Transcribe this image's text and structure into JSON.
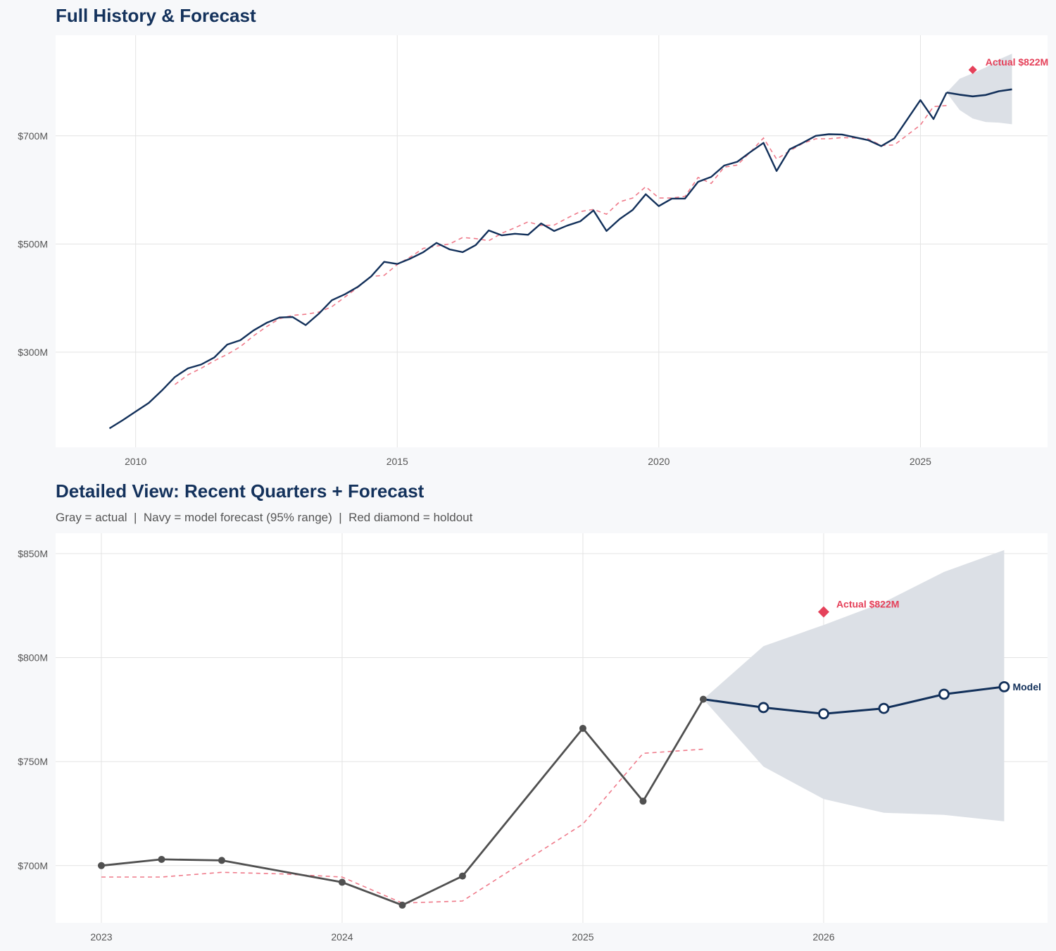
{
  "colors": {
    "navy": "#12305a",
    "red": "#e5415a",
    "actual_gray": "#505050",
    "fitted": "#ef7a8a",
    "band": "#dce0e6",
    "grid": "#e3e3e3"
  },
  "chart_data": [
    {
      "type": "line",
      "title": "Full History & Forecast",
      "xlim": [
        2008.47,
        2027.43
      ],
      "ylim": [
        124,
        886
      ],
      "x_ticks": [
        2010,
        2015,
        2020,
        2025
      ],
      "x_tick_labels": [
        "2010",
        "2015",
        "2020",
        "2025"
      ],
      "y_ticks": [
        300,
        500,
        700
      ],
      "y_tick_labels": [
        "$300M",
        "$500M",
        "$700M"
      ],
      "grid": true,
      "series": {
        "actual": [
          [
            2009.5,
            159
          ],
          [
            2009.75,
            174
          ],
          [
            2010,
            190
          ],
          [
            2010.25,
            206
          ],
          [
            2010.5,
            229
          ],
          [
            2010.75,
            254
          ],
          [
            2011,
            270
          ],
          [
            2011.25,
            277
          ],
          [
            2011.5,
            290
          ],
          [
            2011.75,
            314
          ],
          [
            2012,
            322
          ],
          [
            2012.25,
            340
          ],
          [
            2012.5,
            354
          ],
          [
            2012.75,
            364
          ],
          [
            2013,
            365
          ],
          [
            2013.25,
            350
          ],
          [
            2013.5,
            371
          ],
          [
            2013.75,
            396
          ],
          [
            2014,
            407
          ],
          [
            2014.25,
            421
          ],
          [
            2014.5,
            440
          ],
          [
            2014.75,
            467
          ],
          [
            2015,
            463
          ],
          [
            2015.25,
            473
          ],
          [
            2015.5,
            485
          ],
          [
            2015.75,
            502
          ],
          [
            2016,
            490
          ],
          [
            2016.25,
            485
          ],
          [
            2016.5,
            498
          ],
          [
            2016.75,
            525
          ],
          [
            2017,
            516
          ],
          [
            2017.25,
            519
          ],
          [
            2017.5,
            517
          ],
          [
            2017.75,
            538
          ],
          [
            2018,
            524
          ],
          [
            2018.25,
            534
          ],
          [
            2018.5,
            542
          ],
          [
            2018.75,
            562
          ],
          [
            2019,
            524
          ],
          [
            2019.25,
            546
          ],
          [
            2019.5,
            563
          ],
          [
            2019.75,
            592
          ],
          [
            2020,
            570
          ],
          [
            2020.25,
            584
          ],
          [
            2020.5,
            584
          ],
          [
            2020.75,
            615
          ],
          [
            2021,
            624
          ],
          [
            2021.25,
            645
          ],
          [
            2021.5,
            652
          ],
          [
            2021.75,
            670
          ],
          [
            2022,
            687
          ],
          [
            2022.25,
            635
          ],
          [
            2022.5,
            675
          ],
          [
            2022.75,
            687
          ],
          [
            2023,
            700
          ],
          [
            2023.25,
            703
          ],
          [
            2023.5,
            702.5
          ],
          [
            2024,
            692
          ],
          [
            2024.25,
            681
          ],
          [
            2024.5,
            695
          ],
          [
            2025,
            766
          ],
          [
            2025.25,
            731
          ],
          [
            2025.5,
            780
          ]
        ],
        "fitted": [
          [
            2010.75,
            240
          ],
          [
            2011,
            258
          ],
          [
            2011.25,
            270
          ],
          [
            2011.5,
            284
          ],
          [
            2011.75,
            296
          ],
          [
            2012,
            310
          ],
          [
            2012.25,
            330
          ],
          [
            2012.5,
            347
          ],
          [
            2012.75,
            362
          ],
          [
            2013,
            368
          ],
          [
            2013.25,
            370
          ],
          [
            2013.5,
            374
          ],
          [
            2013.75,
            384
          ],
          [
            2014,
            402
          ],
          [
            2014.25,
            420
          ],
          [
            2014.5,
            440
          ],
          [
            2014.75,
            442
          ],
          [
            2015,
            462
          ],
          [
            2015.25,
            476
          ],
          [
            2015.5,
            492
          ],
          [
            2015.75,
            496
          ],
          [
            2016,
            500
          ],
          [
            2016.25,
            512
          ],
          [
            2016.5,
            510
          ],
          [
            2016.75,
            506
          ],
          [
            2017,
            520
          ],
          [
            2017.25,
            530
          ],
          [
            2017.5,
            541
          ],
          [
            2017.75,
            534
          ],
          [
            2018,
            535
          ],
          [
            2018.25,
            548
          ],
          [
            2018.5,
            560
          ],
          [
            2018.75,
            564
          ],
          [
            2019,
            555
          ],
          [
            2019.25,
            578
          ],
          [
            2019.5,
            585
          ],
          [
            2019.75,
            606
          ],
          [
            2020,
            585
          ],
          [
            2020.25,
            585
          ],
          [
            2020.5,
            588
          ],
          [
            2020.75,
            623
          ],
          [
            2021,
            612
          ],
          [
            2021.25,
            642
          ],
          [
            2021.5,
            646
          ],
          [
            2021.75,
            670
          ],
          [
            2022,
            696
          ],
          [
            2022.25,
            657
          ],
          [
            2022.5,
            672
          ],
          [
            2022.75,
            686
          ],
          [
            2023,
            694.5
          ],
          [
            2023.25,
            694.5
          ],
          [
            2023.5,
            696.8
          ],
          [
            2023.75,
            696
          ],
          [
            2024,
            694.5
          ],
          [
            2024.25,
            682
          ],
          [
            2024.5,
            683
          ],
          [
            2025,
            720
          ],
          [
            2025.25,
            754
          ],
          [
            2025.5,
            756
          ]
        ],
        "forecast": [
          [
            2025.5,
            780
          ],
          [
            2025.75,
            776
          ],
          [
            2026,
            773
          ],
          [
            2026.25,
            775.6
          ],
          [
            2026.5,
            782.4
          ],
          [
            2026.75,
            786
          ]
        ],
        "band_upper": [
          [
            2025.5,
            780
          ],
          [
            2025.75,
            805.5
          ],
          [
            2026,
            815.7
          ],
          [
            2026.25,
            826.6
          ],
          [
            2026.5,
            841.2
          ],
          [
            2026.75,
            851.7
          ]
        ],
        "band_lower": [
          [
            2025.5,
            780
          ],
          [
            2025.75,
            747.6
          ],
          [
            2026,
            732
          ],
          [
            2026.25,
            725.4
          ],
          [
            2026.5,
            724.4
          ],
          [
            2026.75,
            721.3
          ]
        ],
        "holdout": [
          2026,
          822
        ]
      },
      "annotations": {
        "holdout_label": "Actual $822M"
      }
    },
    {
      "type": "line",
      "title": "Detailed View: Recent Quarters + Forecast",
      "subtitle": "Gray = actual  |  Navy = model forecast (95% range)  |  Red diamond = holdout",
      "xlim": [
        2022.81,
        2026.93
      ],
      "ylim": [
        672.5,
        859.8
      ],
      "x_ticks": [
        2023,
        2024,
        2025,
        2026
      ],
      "x_tick_labels": [
        "2023",
        "2024",
        "2025",
        "2026"
      ],
      "y_ticks": [
        700,
        750,
        800,
        850
      ],
      "y_tick_labels": [
        "$700M",
        "$750M",
        "$800M",
        "$850M"
      ],
      "grid": true,
      "series": {
        "actual": [
          [
            2023,
            700
          ],
          [
            2023.25,
            703
          ],
          [
            2023.5,
            702.5
          ],
          [
            2024,
            692
          ],
          [
            2024.25,
            681
          ],
          [
            2024.5,
            695
          ],
          [
            2025,
            766
          ],
          [
            2025.25,
            731
          ],
          [
            2025.5,
            780
          ]
        ],
        "fitted": [
          [
            2023,
            694.5
          ],
          [
            2023.25,
            694.5
          ],
          [
            2023.5,
            696.8
          ],
          [
            2023.75,
            696
          ],
          [
            2024,
            694.5
          ],
          [
            2024.25,
            682
          ],
          [
            2024.5,
            683
          ],
          [
            2025,
            720
          ],
          [
            2025.25,
            754
          ],
          [
            2025.5,
            756
          ]
        ],
        "forecast": [
          [
            2025.5,
            780
          ],
          [
            2025.75,
            776
          ],
          [
            2026,
            773
          ],
          [
            2026.25,
            775.6
          ],
          [
            2026.5,
            782.4
          ],
          [
            2026.75,
            786
          ]
        ],
        "band_upper": [
          [
            2025.5,
            780
          ],
          [
            2025.75,
            805.5
          ],
          [
            2026,
            815.7
          ],
          [
            2026.25,
            826.6
          ],
          [
            2026.5,
            841.2
          ],
          [
            2026.75,
            851.7
          ]
        ],
        "band_lower": [
          [
            2025.5,
            780
          ],
          [
            2025.75,
            747.6
          ],
          [
            2026,
            732
          ],
          [
            2026.25,
            725.4
          ],
          [
            2026.5,
            724.4
          ],
          [
            2026.75,
            721.3
          ]
        ],
        "holdout": [
          2026,
          822
        ]
      },
      "annotations": {
        "holdout_label": "Actual $822M",
        "forecast_label": "Model"
      }
    }
  ]
}
